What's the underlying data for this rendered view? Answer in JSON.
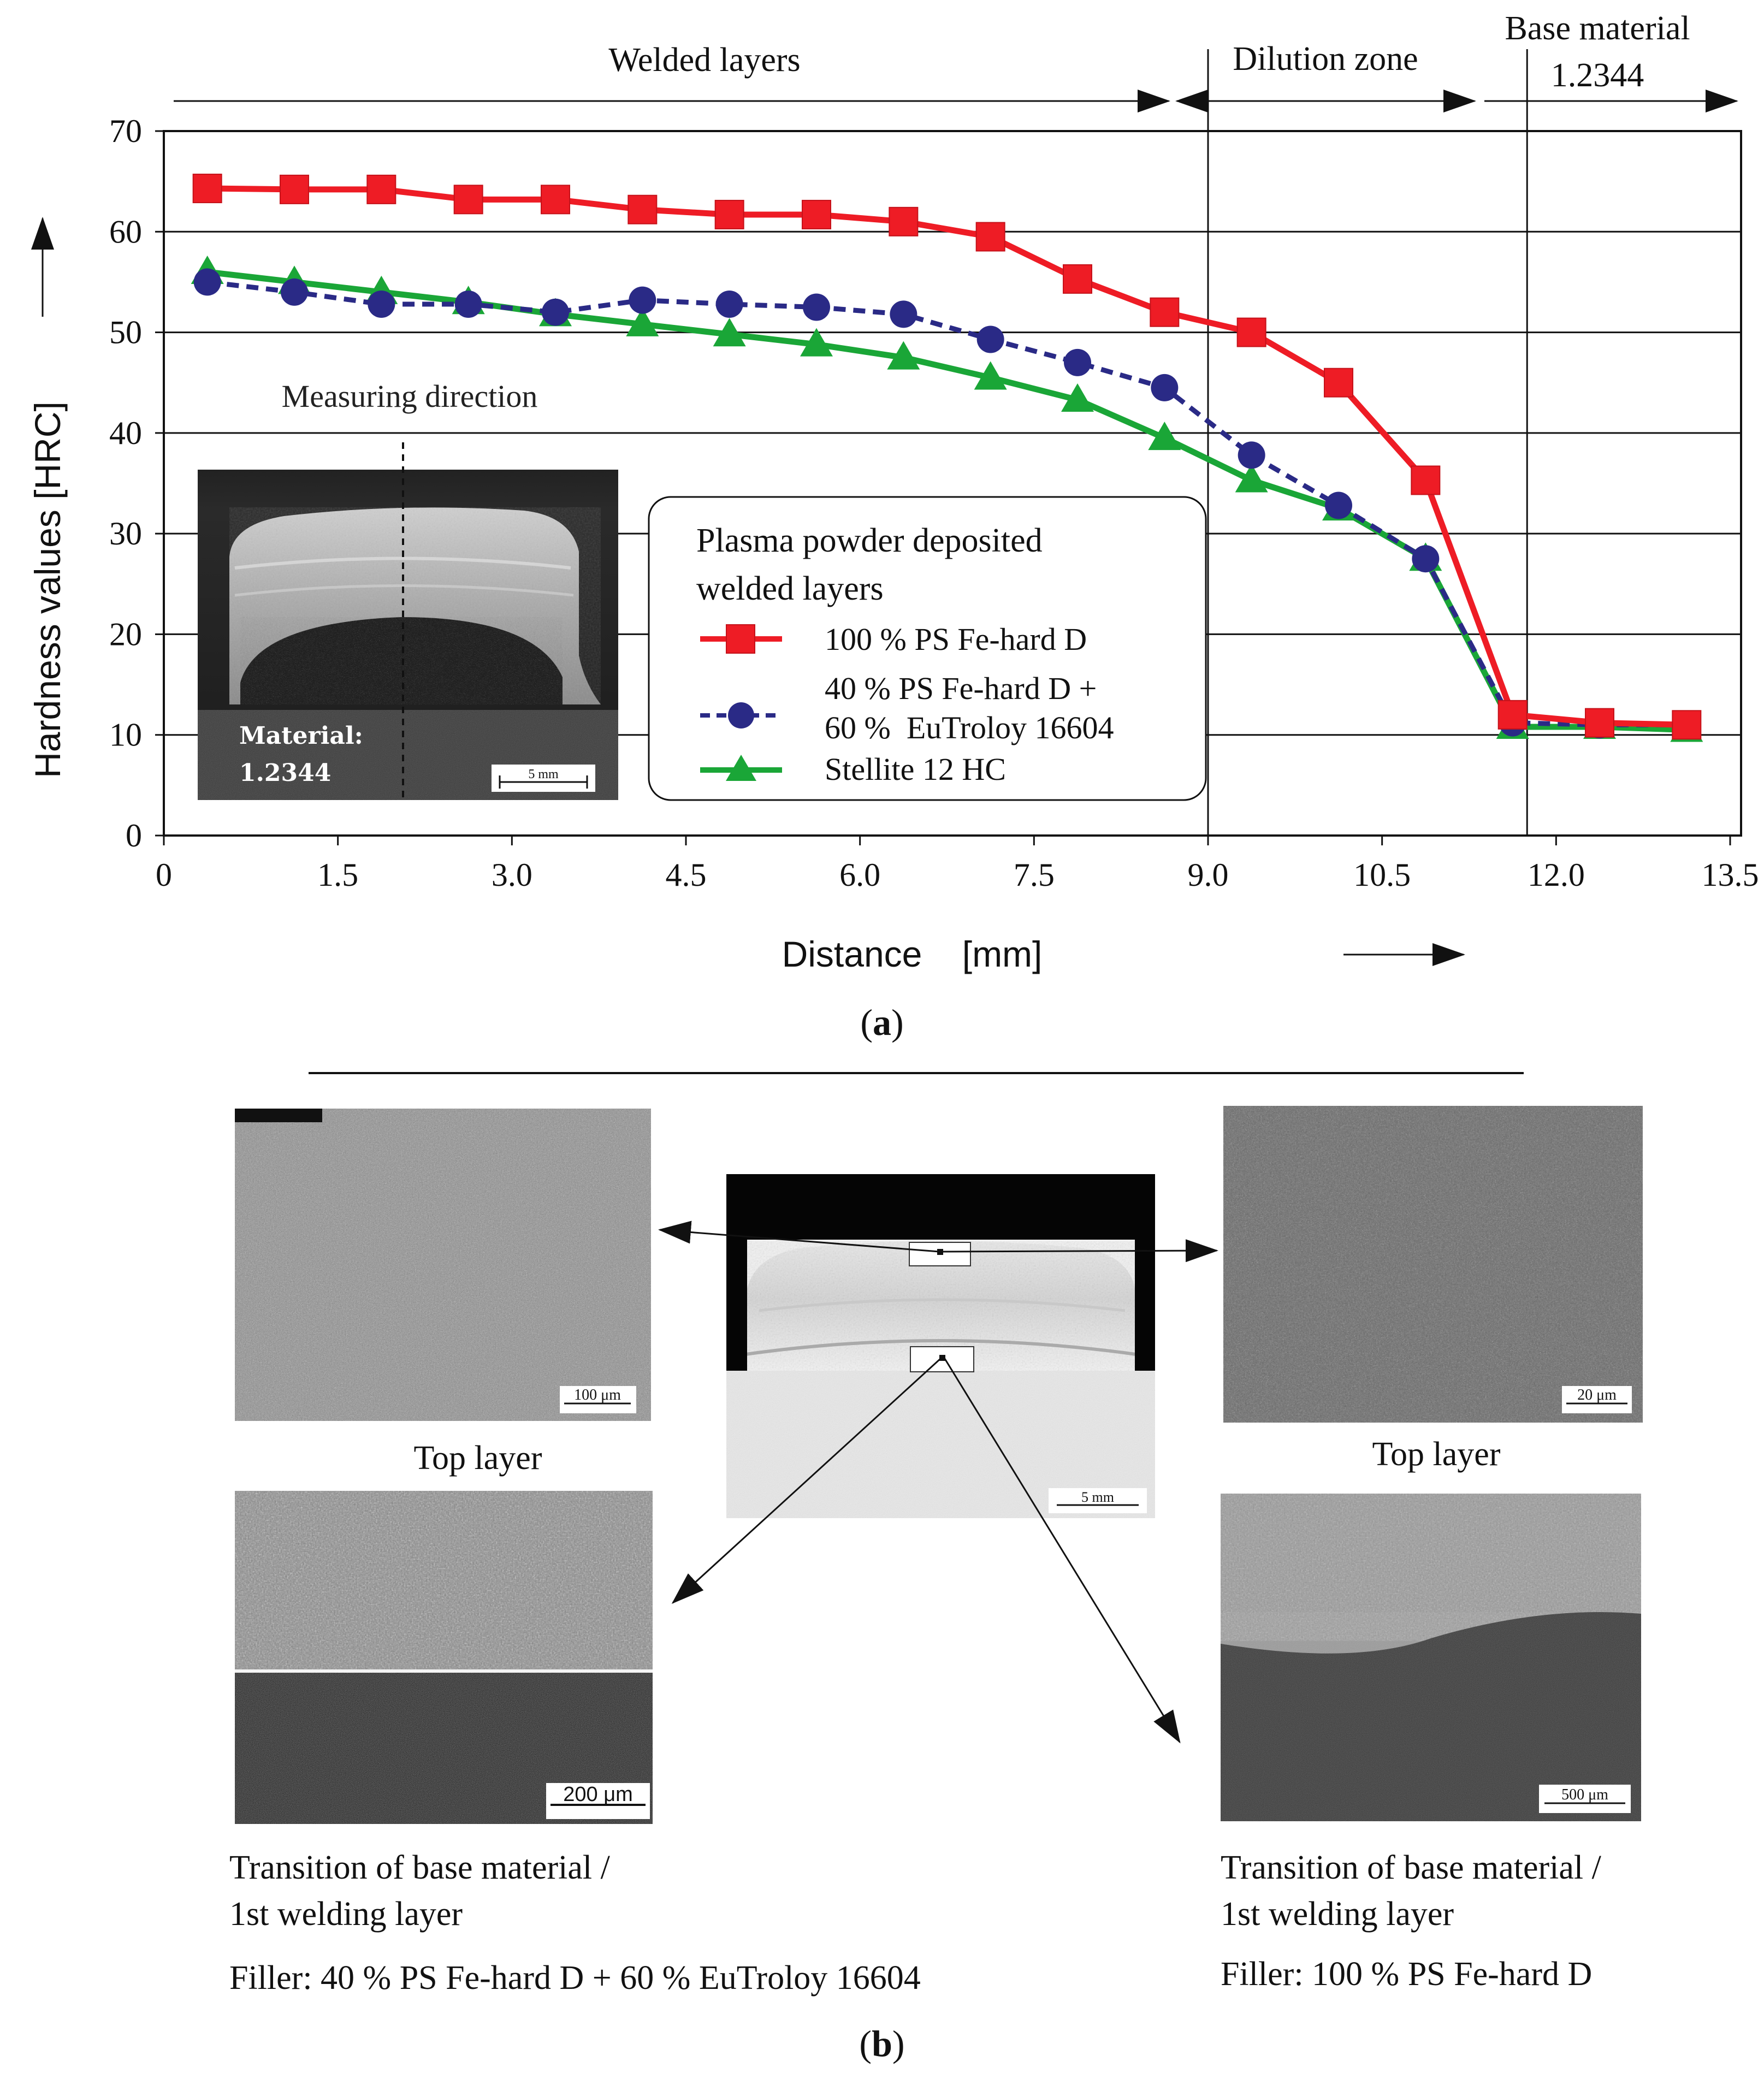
{
  "panel_a": {
    "label_open": "(",
    "label_letter": "a",
    "label_close": ")",
    "zones": {
      "welded": "Welded layers",
      "dilution": "Dilution zone",
      "base_line1": "Base material",
      "base_line2": "1.2344"
    },
    "measuring_direction": "Measuring direction",
    "inset": {
      "material_label": "Material:",
      "material_value": "1.2344",
      "scale": "5 mm"
    },
    "legend": {
      "title_line1": "Plasma powder deposited",
      "title_line2": "welded layers",
      "entries": [
        {
          "label": "100 % PS Fe-hard D"
        },
        {
          "label": "40 % PS Fe-hard D +",
          "label2": "60 %  EuTroloy 16604"
        },
        {
          "label": "Stellite 12 HC"
        }
      ]
    }
  },
  "chart_data": {
    "type": "line",
    "xlabel": "Distance    [mm]",
    "ylabel": "Hardness values   [HRC]",
    "xlim": [
      0,
      13.5
    ],
    "ylim": [
      0,
      70
    ],
    "xticks": [
      "0",
      "1.5",
      "3.0",
      "4.5",
      "6.0",
      "7.5",
      "9.0",
      "10.5",
      "12.0",
      "13.5"
    ],
    "xtick_values": [
      0,
      1.5,
      3.0,
      4.5,
      6.0,
      7.5,
      9.0,
      10.5,
      12.0,
      13.5
    ],
    "yticks": [
      "0",
      "10",
      "20",
      "30",
      "40",
      "50",
      "60",
      "70"
    ],
    "ytick_values": [
      0,
      10,
      20,
      30,
      40,
      50,
      60,
      70
    ],
    "zone_boundaries": [
      9.0,
      11.75
    ],
    "x": [
      0.375,
      1.125,
      1.875,
      2.625,
      3.375,
      4.125,
      4.875,
      5.625,
      6.375,
      7.125,
      7.875,
      8.625,
      9.375,
      10.125,
      10.875,
      11.625,
      12.375,
      13.125
    ],
    "series": [
      {
        "name": "100 % PS Fe-hard D",
        "color": "#ee1c25",
        "marker": "square",
        "dash": false,
        "values": [
          64.3,
          64.2,
          64.2,
          63.2,
          63.2,
          62.2,
          61.7,
          61.7,
          61.0,
          59.5,
          55.3,
          52.0,
          50.0,
          45.0,
          35.3,
          12.0,
          11.2,
          11.0
        ]
      },
      {
        "name": "40 % PS Fe-hard D + 60 %  EuTroloy 16604",
        "color": "#2a2a86",
        "marker": "circle",
        "dash": true,
        "values": [
          55.0,
          54.0,
          52.8,
          52.8,
          52.0,
          53.2,
          52.8,
          52.5,
          51.8,
          49.3,
          47.0,
          44.5,
          37.8,
          32.8,
          27.5,
          11.2,
          11.0,
          11.0
        ]
      },
      {
        "name": "Stellite 12 HC",
        "color": "#1aa637",
        "marker": "triangle",
        "dash": false,
        "values": [
          56.0,
          55.0,
          54.0,
          53.0,
          51.8,
          50.8,
          49.8,
          48.8,
          47.5,
          45.5,
          43.3,
          39.5,
          35.3,
          32.5,
          27.5,
          10.8,
          10.8,
          10.5
        ]
      }
    ]
  },
  "panel_b": {
    "label_open": "(",
    "label_letter": "b",
    "label_close": ")",
    "left_caption_top": "Top layer",
    "right_caption_top": "Top layer",
    "left_transition_line1": "Transition of base material /",
    "left_transition_line2": "1st welding layer",
    "left_filler": "Filler: 40 % PS Fe-hard D + 60 % EuTroloy 16604",
    "right_transition_line1": "Transition of base material /",
    "right_transition_line2": "1st welding layer",
    "right_filler": "Filler: 100 % PS Fe-hard D",
    "scales": {
      "top_left": "100 μm",
      "top_right": "20 μm",
      "bottom_left": "200 μm",
      "bottom_right": "500 μm",
      "center": "5 mm"
    }
  }
}
